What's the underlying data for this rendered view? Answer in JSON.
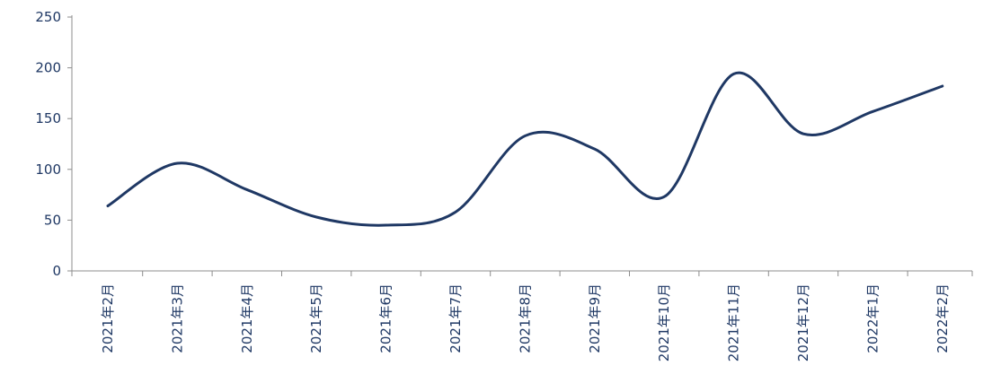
{
  "chart_data": {
    "type": "line",
    "categories": [
      "2021年2月",
      "2021年3月",
      "2021年4月",
      "2021年5月",
      "2021年6月",
      "2021年7月",
      "2021年8月",
      "2021年9月",
      "2021年10月",
      "2021年11月",
      "2021年12月",
      "2022年1月",
      "2022年2月"
    ],
    "series": [
      {
        "values": [
          64,
          106,
          80,
          53,
          45,
          58,
          133,
          120,
          73,
          194,
          135,
          157,
          182
        ]
      }
    ],
    "ylim": [
      0,
      250
    ],
    "yticks": [
      0,
      50,
      100,
      150,
      200,
      250
    ],
    "grid": false,
    "line_color": "#1f3864",
    "smooth": true
  }
}
